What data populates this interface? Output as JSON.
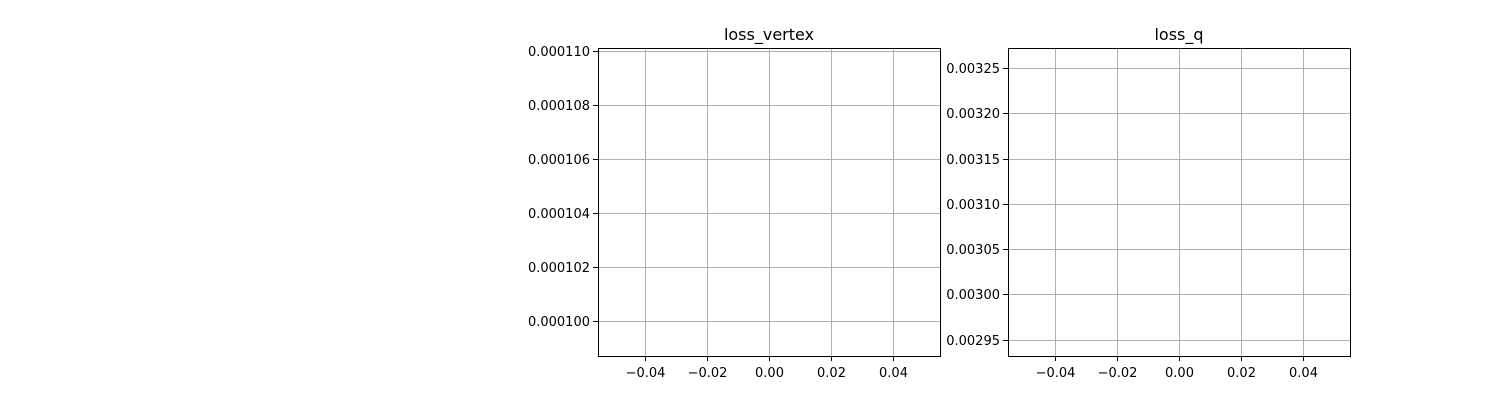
{
  "chart_data": [
    {
      "type": "line",
      "title": "loss_vertex",
      "xlabel": "",
      "ylabel": "",
      "xlim": [
        -0.055,
        0.055
      ],
      "ylim": [
        9.87e-05,
        0.0001101
      ],
      "x_ticks": [
        -0.04,
        -0.02,
        0.0,
        0.02,
        0.04
      ],
      "x_tick_labels": [
        "−0.04",
        "−0.02",
        "0.00",
        "0.02",
        "0.04"
      ],
      "y_ticks": [
        0.0001,
        0.000102,
        0.000104,
        0.000106,
        0.000108,
        0.00011
      ],
      "y_tick_labels": [
        "0.000100",
        "0.000102",
        "0.000104",
        "0.000106",
        "0.000108",
        "0.000110"
      ],
      "grid": true,
      "series": []
    },
    {
      "type": "line",
      "title": "loss_q",
      "xlabel": "",
      "ylabel": "",
      "xlim": [
        -0.055,
        0.055
      ],
      "ylim": [
        0.002932,
        0.003272
      ],
      "x_ticks": [
        -0.04,
        -0.02,
        0.0,
        0.02,
        0.04
      ],
      "x_tick_labels": [
        "−0.04",
        "−0.02",
        "0.00",
        "0.02",
        "0.04"
      ],
      "y_ticks": [
        0.00295,
        0.003,
        0.00305,
        0.0031,
        0.00315,
        0.0032,
        0.00325
      ],
      "y_tick_labels": [
        "0.00295",
        "0.00300",
        "0.00305",
        "0.00310",
        "0.00315",
        "0.00320",
        "0.00325"
      ],
      "grid": true,
      "series": []
    }
  ],
  "colors": {
    "grid": "#b0b0b0",
    "axes": "#000000",
    "background": "#ffffff"
  }
}
